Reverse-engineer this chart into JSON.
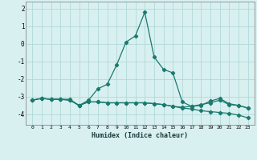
{
  "xlabel": "Humidex (Indice chaleur)",
  "x": [
    0,
    1,
    2,
    3,
    4,
    5,
    6,
    7,
    8,
    9,
    10,
    11,
    12,
    13,
    14,
    15,
    16,
    17,
    18,
    19,
    20,
    21,
    22,
    23
  ],
  "line1": [
    -3.2,
    -3.1,
    -3.15,
    -3.15,
    -3.15,
    -3.5,
    -3.2,
    -2.55,
    -2.3,
    -1.2,
    0.1,
    0.45,
    1.8,
    -0.75,
    -1.45,
    -1.65,
    -3.3,
    -3.55,
    -3.5,
    -3.25,
    -3.1,
    -3.4,
    -3.5,
    -3.65
  ],
  "line2": [
    -3.2,
    -3.1,
    -3.15,
    -3.15,
    -3.2,
    -3.5,
    -3.3,
    -3.3,
    -3.35,
    -3.35,
    -3.35,
    -3.35,
    -3.35,
    -3.4,
    -3.45,
    -3.55,
    -3.6,
    -3.55,
    -3.45,
    -3.35,
    -3.2,
    -3.45,
    -3.5,
    -3.65
  ],
  "line3": [
    -3.2,
    -3.1,
    -3.15,
    -3.15,
    -3.2,
    -3.5,
    -3.3,
    -3.3,
    -3.35,
    -3.35,
    -3.35,
    -3.35,
    -3.35,
    -3.4,
    -3.45,
    -3.55,
    -3.65,
    -3.7,
    -3.8,
    -3.85,
    -3.9,
    -3.95,
    -4.05,
    -4.2
  ],
  "ylim": [
    -4.6,
    2.4
  ],
  "yticks": [
    -4,
    -3,
    -2,
    -1,
    0,
    1,
    2
  ],
  "bg_color": "#d9f0f0",
  "grid_color": "#aad4d4",
  "line_color": "#1a7a6e",
  "marker": "D",
  "marker_size": 2.2,
  "line_width": 0.9
}
